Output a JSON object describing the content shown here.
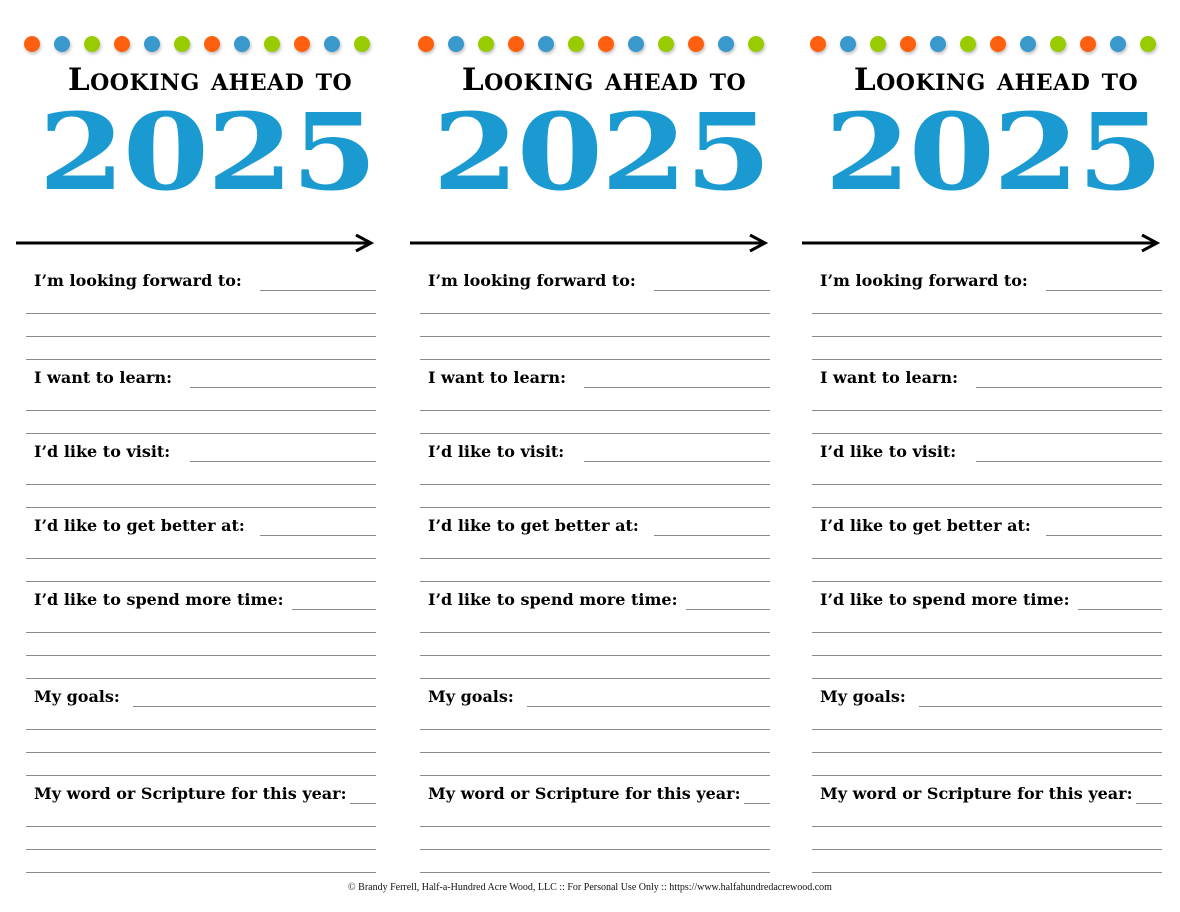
{
  "colors": {
    "orange": "#ff6010",
    "blue": "#3a99cc",
    "green": "#99cc00",
    "year": "#1a9ad0"
  },
  "dot_pattern": [
    "orange",
    "blue",
    "green",
    "orange",
    "blue",
    "green",
    "orange",
    "blue",
    "green",
    "orange",
    "blue",
    "green"
  ],
  "heading": "Looking ahead to",
  "year": "2025",
  "sections": [
    {
      "label": "I’m looking forward to:",
      "extra_lines": 3
    },
    {
      "label": "I want to learn:",
      "extra_lines": 2
    },
    {
      "label": "I’d like to visit:",
      "extra_lines": 2
    },
    {
      "label": "I’d like to get better at:",
      "extra_lines": 2
    },
    {
      "label": "I’d like to spend more time:",
      "extra_lines": 3
    },
    {
      "label": "My goals:",
      "extra_lines": 3
    },
    {
      "label": "My word or Scripture for this year:",
      "extra_lines": 3
    }
  ],
  "column_count": 3,
  "footer": "© Brandy Ferrell, Half-a-Hundred Acre Wood, LLC  ::  For Personal Use Only  ::  https://www.halfahundredacrewood.com"
}
